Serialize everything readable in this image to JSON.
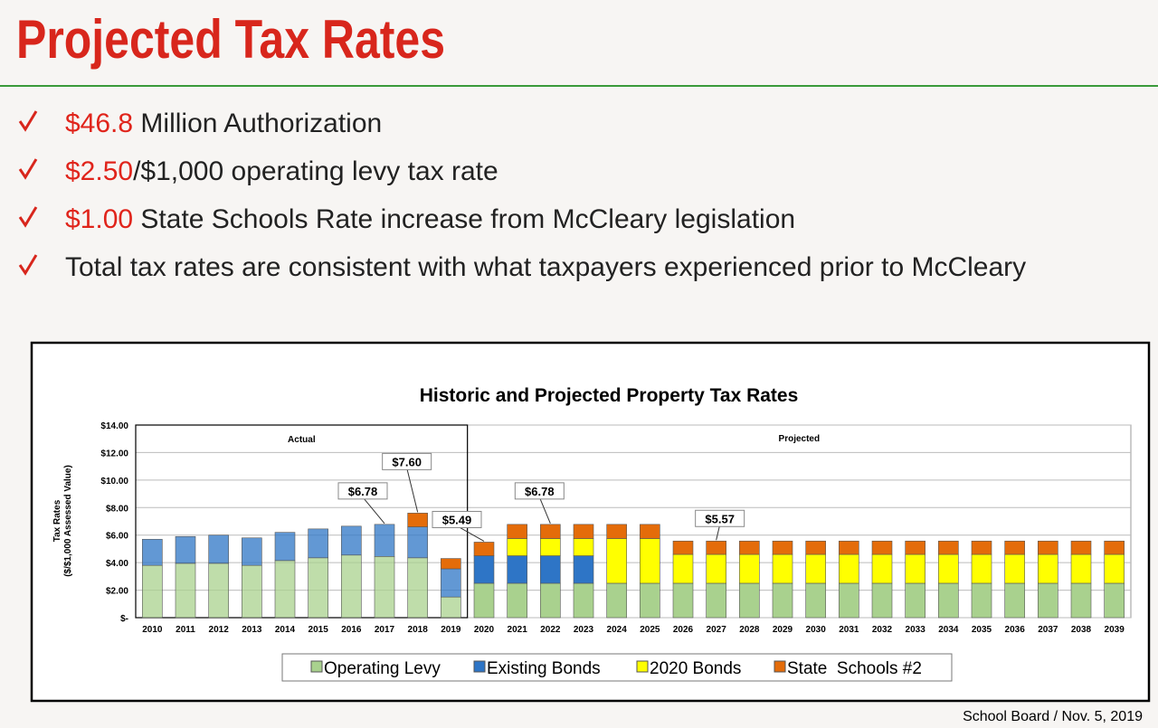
{
  "header": {
    "title": "Projected Tax Rates"
  },
  "bullets": [
    {
      "highlight": "$46.8",
      "text": " Million Authorization"
    },
    {
      "highlight": "$2.50",
      "text": "/$1,000 operating levy tax rate"
    },
    {
      "highlight": "$1.00",
      "text": " State Schools Rate increase from McCleary legislation"
    },
    {
      "text": "Total tax rates are consistent with what taxpayers experienced prior to McCleary"
    }
  ],
  "chart_data": {
    "type": "stacked_bar",
    "title": "Historic and Projected Property Tax Rates",
    "y_label": [
      "Tax Rates",
      "($/$1,000 Assessed Value)"
    ],
    "actual_label": "Actual",
    "projected_label": "Projected",
    "actual_end": "2019",
    "categories": [
      "2010",
      "2011",
      "2012",
      "2013",
      "2014",
      "2015",
      "2016",
      "2017",
      "2018",
      "2019",
      "2020",
      "2021",
      "2022",
      "2023",
      "2024",
      "2025",
      "2026",
      "2027",
      "2028",
      "2029",
      "2030",
      "2031",
      "2032",
      "2033",
      "2034",
      "2035",
      "2036",
      "2037",
      "2038",
      "2039"
    ],
    "series": [
      {
        "name": "Operating Levy",
        "color": "#a9d18e",
        "values": [
          3.8,
          3.95,
          3.95,
          3.8,
          4.15,
          4.35,
          4.55,
          4.45,
          4.35,
          1.5,
          2.5,
          2.5,
          2.5,
          2.5,
          2.5,
          2.5,
          2.5,
          2.5,
          2.5,
          2.5,
          2.5,
          2.5,
          2.5,
          2.5,
          2.5,
          2.5,
          2.5,
          2.5,
          2.5,
          2.5
        ]
      },
      {
        "name": "Existing Bonds",
        "color": "#2e75c6",
        "values": [
          1.9,
          1.95,
          2.05,
          2.0,
          2.05,
          2.1,
          2.1,
          2.33,
          2.25,
          2.05,
          2.0,
          2.0,
          2.0,
          2.0,
          0,
          0,
          0,
          0,
          0,
          0,
          0,
          0,
          0,
          0,
          0,
          0,
          0,
          0,
          0,
          0
        ]
      },
      {
        "name": "2020 Bonds",
        "color": "#ffff00",
        "values": [
          0,
          0,
          0,
          0,
          0,
          0,
          0,
          0,
          0,
          0,
          0,
          1.25,
          1.25,
          1.25,
          3.25,
          3.25,
          2.1,
          2.1,
          2.1,
          2.1,
          2.1,
          2.1,
          2.1,
          2.1,
          2.1,
          2.1,
          2.1,
          2.1,
          2.1,
          2.1
        ]
      },
      {
        "name": "State  Schools #2",
        "color": "#e46c0a",
        "values": [
          0,
          0,
          0,
          0,
          0,
          0,
          0,
          0,
          1.0,
          0.75,
          0.99,
          1.03,
          1.03,
          1.03,
          1.03,
          1.03,
          0.97,
          0.97,
          0.97,
          0.97,
          0.97,
          0.97,
          0.97,
          0.97,
          0.97,
          0.97,
          0.97,
          0.97,
          0.97,
          0.97
        ]
      }
    ],
    "annotations": [
      {
        "text": "$6.78",
        "category": "2017"
      },
      {
        "text": "$7.60",
        "category": "2018"
      },
      {
        "text": "$5.49",
        "category": "2020"
      },
      {
        "text": "$6.78",
        "category": "2022"
      },
      {
        "text": "$5.57",
        "category": "2027"
      }
    ],
    "ylim": [
      0,
      14
    ],
    "yticks": [
      {
        "value": 0,
        "label": "$-"
      },
      {
        "value": 2,
        "label": "$2.00"
      },
      {
        "value": 4,
        "label": "$4.00"
      },
      {
        "value": 6,
        "label": "$6.00"
      },
      {
        "value": 8,
        "label": "$8.00"
      },
      {
        "value": 10,
        "label": "$10.00"
      },
      {
        "value": 12,
        "label": "$12.00"
      },
      {
        "value": 14,
        "label": "$14.00"
      }
    ],
    "grid": true
  },
  "footer": "School Board / Nov. 5, 2019"
}
